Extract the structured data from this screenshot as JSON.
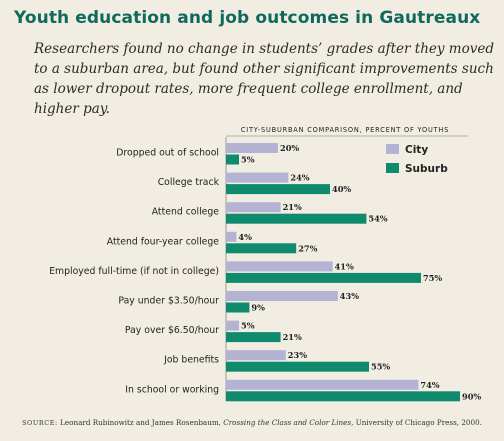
{
  "title": "Youth education and job outcomes in Gautreaux",
  "subtitle": "Researchers found no change in students’ grades after they moved to a suburban area, but found other significant improvements such as lower dropout rates, more frequent college enrollment, and higher pay.",
  "source": {
    "label": "source:",
    "authors": "Leonard Rubinowitz and James Rosenbaum,",
    "book": "Crossing the Class and Color Lines",
    "publisher": ", University of Chicago Press, 2000."
  },
  "colors": {
    "city": "#b4b3d3",
    "suburb": "#0f8a6c"
  },
  "chart_data": {
    "type": "bar",
    "orientation": "horizontal",
    "title": "CITY-SUBURBAN COMPARISON, PERCENT OF YOUTHS",
    "categories": [
      "Dropped out of school",
      "College track",
      "Attend college",
      "Attend four-year college",
      "Employed full-time (if not in college)",
      "Pay under $3.50/hour",
      "Pay over $6.50/hour",
      "Job benefits",
      "In school or working"
    ],
    "series": [
      {
        "name": "City",
        "values": [
          20,
          24,
          21,
          4,
          41,
          43,
          5,
          23,
          74
        ]
      },
      {
        "name": "Suburb",
        "values": [
          5,
          40,
          54,
          27,
          75,
          9,
          21,
          55,
          90
        ]
      }
    ],
    "value_labels": {
      "City": [
        "20%",
        "24%",
        "21%",
        "4%",
        "41%",
        "43%",
        "5%",
        "23%",
        "74%"
      ],
      "Suburb": [
        "5%",
        "40%",
        "54%",
        "27%",
        "75%",
        "9%",
        "21%",
        "55%",
        "90%"
      ]
    },
    "xlim": [
      0,
      90
    ],
    "grid": false,
    "legend": "top-right"
  }
}
